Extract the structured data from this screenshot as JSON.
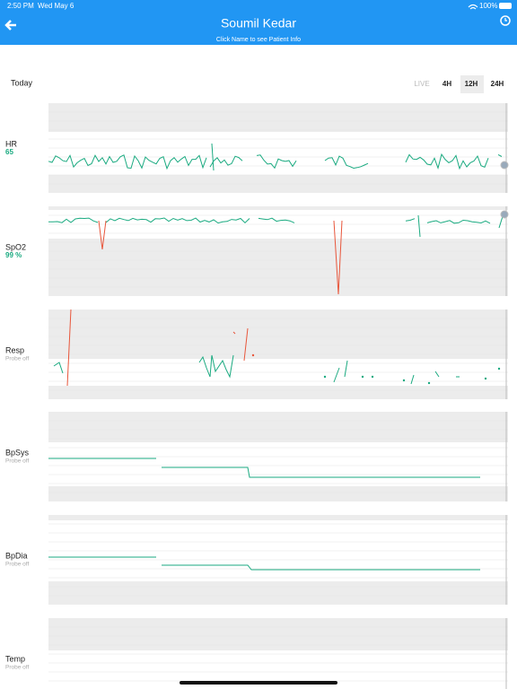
{
  "status_bar": {
    "time": "2:50 PM",
    "date": "Wed May 6",
    "battery": "100%"
  },
  "header": {
    "title": "Soumil Kedar",
    "subtitle": "Click Name to see Patient Info"
  },
  "toolbar": {
    "label": "Today",
    "ranges": [
      "LIVE",
      "4H",
      "12H",
      "24H"
    ]
  },
  "panels": [
    {
      "name": "HR",
      "value": "65"
    },
    {
      "name": "SpO2",
      "value": "99 %"
    },
    {
      "name": "Resp",
      "value": "Probe off"
    },
    {
      "name": "BpSys",
      "value": "Probe off"
    },
    {
      "name": "BpDia",
      "value": "Probe off"
    },
    {
      "name": "Temp",
      "value": "Probe off"
    }
  ]
}
